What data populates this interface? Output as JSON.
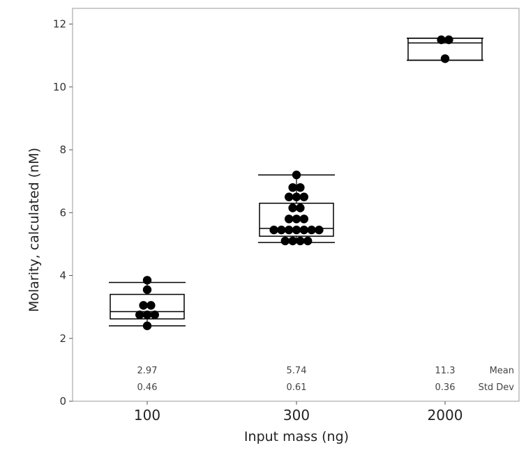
{
  "chart_data": {
    "type": "box",
    "xlabel": "Input mass (ng)",
    "ylabel": "Molarity, calculated (nM)",
    "ylim": [
      0,
      12.5
    ],
    "yticks": [
      "0",
      "2",
      "4",
      "6",
      "8",
      "10",
      "12"
    ],
    "categories": [
      "100",
      "300",
      "2000"
    ],
    "grid": false,
    "groups": [
      {
        "category": "100",
        "points": [
          3.85,
          3.55,
          3.05,
          3.05,
          2.75,
          2.75,
          2.75,
          2.4
        ],
        "box": {
          "whisker_low": 2.4,
          "q1": 2.62,
          "median": 2.85,
          "q3": 3.4,
          "whisker_high": 3.78
        },
        "mean": "2.97",
        "std_dev": "0.46"
      },
      {
        "category": "300",
        "points": [
          7.2,
          6.8,
          6.8,
          6.5,
          6.5,
          6.5,
          6.15,
          6.15,
          5.8,
          5.8,
          5.8,
          5.45,
          5.45,
          5.45,
          5.45,
          5.45,
          5.45,
          5.45,
          5.1,
          5.1,
          5.1,
          5.1
        ],
        "box": {
          "whisker_low": 5.05,
          "q1": 5.25,
          "median": 5.5,
          "q3": 6.3,
          "whisker_high": 7.2
        },
        "mean": "5.74",
        "std_dev": "0.61"
      },
      {
        "category": "2000",
        "points": [
          11.5,
          11.5,
          10.9
        ],
        "box": {
          "whisker_low": 10.85,
          "q1": 10.85,
          "median": 11.4,
          "q3": 11.55,
          "whisker_high": 11.55
        },
        "mean": "11.3",
        "std_dev": "0.36"
      }
    ],
    "summary_row_labels": {
      "mean": "Mean",
      "std_dev": "Std Dev"
    }
  },
  "colors": {
    "points": "#000000",
    "box": "#000000",
    "frame": "#999999",
    "background": "#ffffff"
  }
}
